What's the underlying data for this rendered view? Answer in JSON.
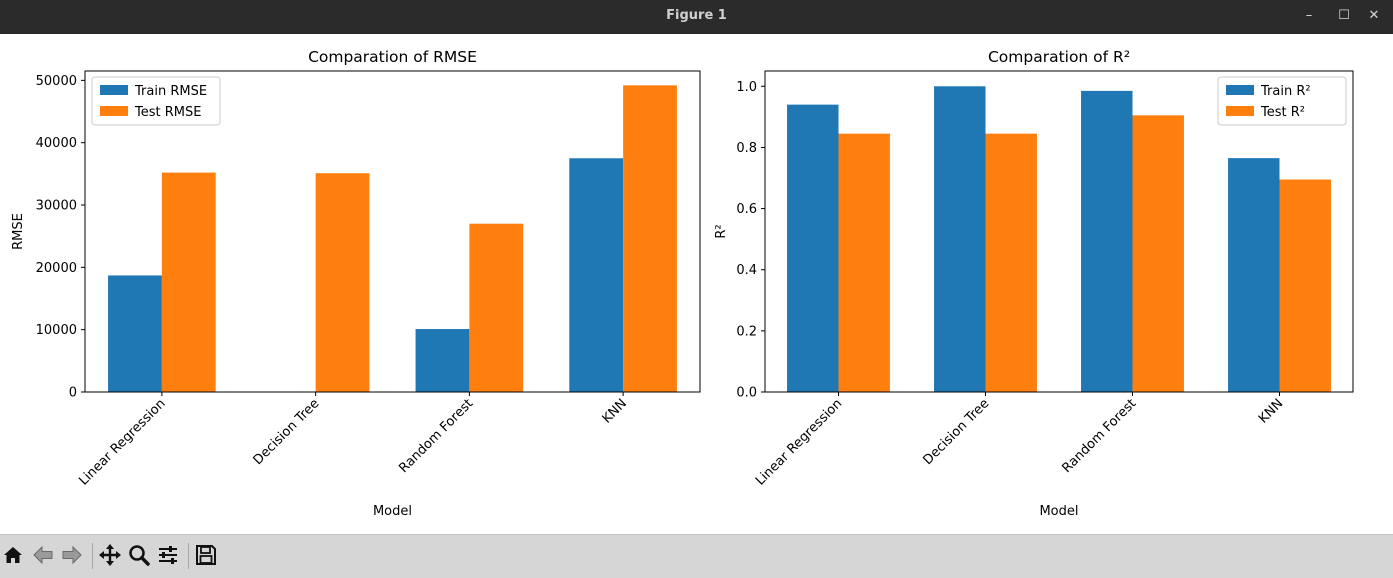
{
  "window": {
    "title": "Figure 1",
    "minimize_symbol": "–",
    "maximize_symbol": "☐",
    "close_symbol": "✕"
  },
  "toolbar": {
    "icons": [
      "home-icon",
      "back-arrow-icon",
      "forward-arrow-icon",
      "pan-icon",
      "zoom-icon",
      "configure-subplots-icon",
      "save-icon"
    ]
  },
  "colors": {
    "train": "#1f77b4",
    "test": "#ff7f0e"
  },
  "chart_data": [
    {
      "type": "bar",
      "title": "Comparation of RMSE",
      "xlabel": "Model",
      "ylabel": "RMSE",
      "categories": [
        "Linear Regression",
        "Decision Tree",
        "Random Forest",
        "KNN"
      ],
      "ylim": [
        0,
        51500
      ],
      "yticks": [
        0,
        10000,
        20000,
        30000,
        40000,
        50000
      ],
      "ytick_labels": [
        "0",
        "10000",
        "20000",
        "30000",
        "40000",
        "50000"
      ],
      "legend_position": "upper-left",
      "series": [
        {
          "name": "Train RMSE",
          "values": [
            18700,
            0,
            10100,
            37500
          ]
        },
        {
          "name": "Test RMSE",
          "values": [
            35200,
            35100,
            27000,
            49200
          ]
        }
      ]
    },
    {
      "type": "bar",
      "title": "Comparation of R²",
      "xlabel": "Model",
      "ylabel": "R²",
      "categories": [
        "Linear Regression",
        "Decision Tree",
        "Random Forest",
        "KNN"
      ],
      "ylim": [
        0,
        1.05
      ],
      "yticks": [
        0,
        0.2,
        0.4,
        0.6,
        0.8,
        1.0
      ],
      "ytick_labels": [
        "0.0",
        "0.2",
        "0.4",
        "0.6",
        "0.8",
        "1.0"
      ],
      "legend_position": "upper-right",
      "series": [
        {
          "name": "Train R²",
          "values": [
            0.94,
            1.0,
            0.985,
            0.765
          ]
        },
        {
          "name": "Test R²",
          "values": [
            0.845,
            0.845,
            0.905,
            0.695
          ]
        }
      ]
    }
  ]
}
